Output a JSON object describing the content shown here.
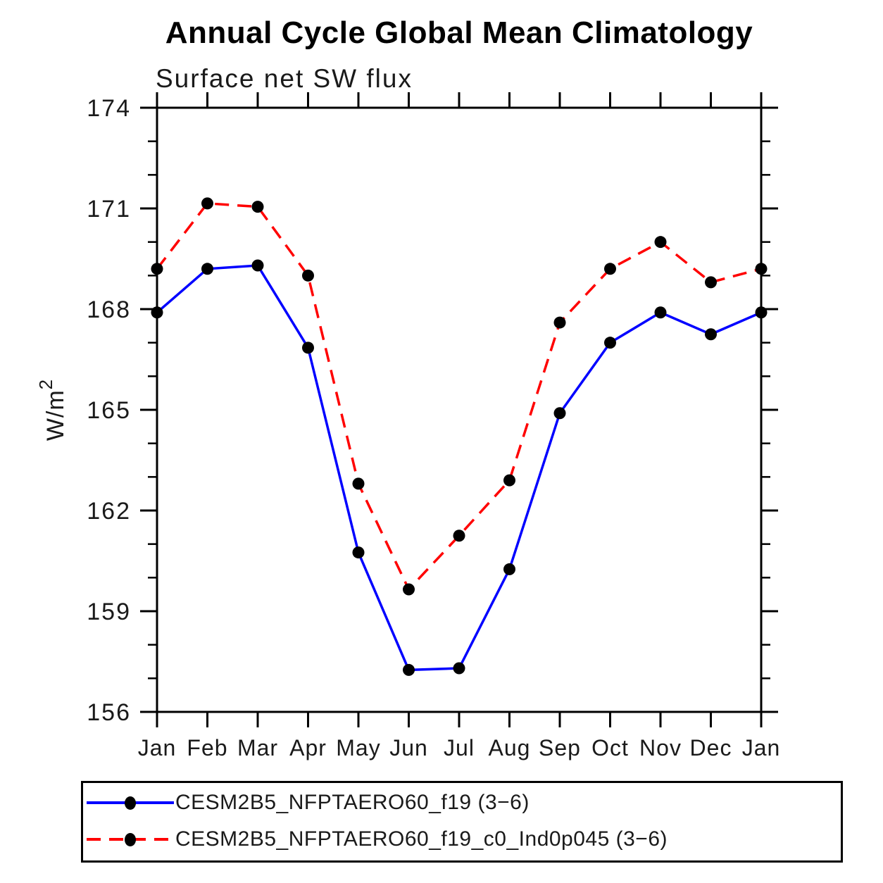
{
  "chart_data": {
    "type": "line",
    "title": "Annual Cycle Global Mean Climatology",
    "subtitle": "Surface net SW flux",
    "ylabel": "W/m²",
    "xlabel": "",
    "categories": [
      "Jan",
      "Feb",
      "Mar",
      "Apr",
      "May",
      "Jun",
      "Jul",
      "Aug",
      "Sep",
      "Oct",
      "Nov",
      "Dec",
      "Jan"
    ],
    "ylim": [
      156,
      174
    ],
    "yticks_major": [
      156,
      159,
      162,
      165,
      168,
      171,
      174
    ],
    "ytick_minor_step": 1,
    "grid": "off",
    "legend_position": "bottom",
    "marker_color": "#000000",
    "axis_color": "#000000",
    "series": [
      {
        "name": "CESM2B5_NFPTAERO60_f19 (3−6)",
        "color": "#0000ff",
        "style": "solid",
        "values": [
          167.9,
          169.2,
          169.3,
          166.85,
          160.75,
          157.25,
          157.3,
          160.25,
          164.9,
          167.0,
          167.9,
          167.25,
          167.9
        ]
      },
      {
        "name": "CESM2B5_NFPTAERO60_f19_c0_Ind0p045 (3−6)",
        "color": "#ff0000",
        "style": "dashed",
        "values": [
          169.2,
          171.15,
          171.05,
          169.0,
          162.8,
          159.65,
          161.25,
          162.9,
          167.6,
          169.2,
          170.0,
          168.8,
          169.2
        ]
      }
    ]
  }
}
